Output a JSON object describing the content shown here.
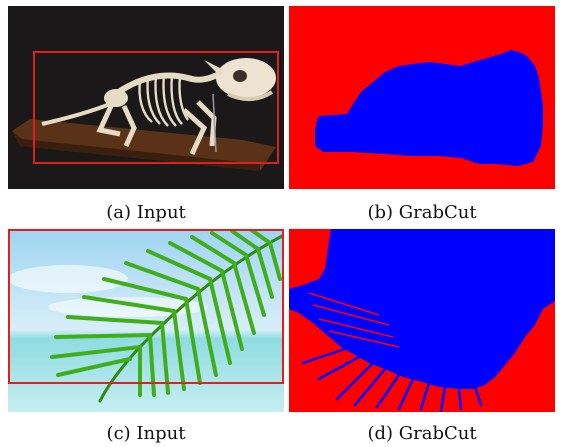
{
  "captions": {
    "a": "(a) Input",
    "b": "(b) GrabCut",
    "c": "(c) Input",
    "d": "(d) GrabCut"
  },
  "colors": {
    "bounding_box": "#e0201c",
    "segmentation_background": "#ff0000",
    "segmentation_foreground": "#0000ff",
    "skeleton_backdrop": "#1a1818",
    "wooden_base": "#5a3218",
    "bone": "#e6dcc4",
    "palm_leaf": "#46b81e",
    "sky": "#aee0f4",
    "sea": "#7fd8de"
  },
  "panels": [
    {
      "id": "a",
      "icon": "skeleton-photo-icon"
    },
    {
      "id": "b",
      "icon": "segmentation-mask-icon"
    },
    {
      "id": "c",
      "icon": "palm-leaf-photo-icon"
    },
    {
      "id": "d",
      "icon": "segmentation-mask-icon"
    }
  ]
}
